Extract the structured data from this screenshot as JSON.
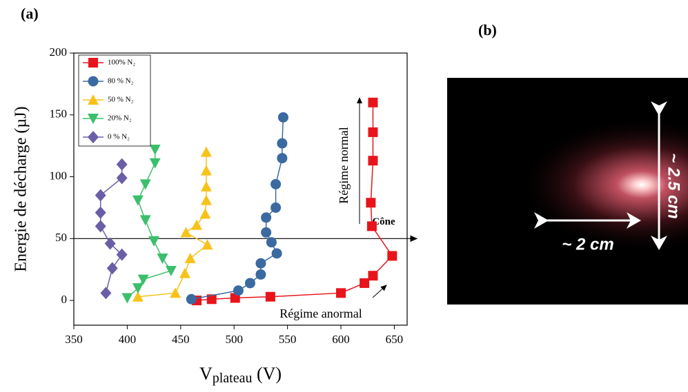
{
  "panel_labels": [
    "(a)",
    "(b)"
  ],
  "chart_data": {
    "type": "line",
    "ylabel": "Energie de décharge (µJ)",
    "xlabel": {
      "main": "V",
      "sub": "plateau",
      "unit": "(V)"
    },
    "xlim": [
      350,
      662
    ],
    "xticks": [
      350,
      400,
      450,
      500,
      550,
      600,
      650
    ],
    "ylim": [
      -20,
      200
    ],
    "yticks": [
      0,
      50,
      100,
      150,
      200
    ],
    "legend": "top-left",
    "reference_line": {
      "y": 50,
      "label": "Cône"
    },
    "annotations": [
      "Régime normal",
      "Régime anormal"
    ],
    "series": [
      {
        "name": "100% N₂",
        "color": "#e8141b",
        "marker": "square",
        "x": [
          465,
          479,
          501,
          534,
          600,
          622,
          630,
          648,
          629,
          628,
          630,
          630,
          630
        ],
        "values": [
          0,
          1,
          2,
          3,
          6,
          14,
          20,
          36,
          60,
          79,
          113,
          136,
          160
        ]
      },
      {
        "name": "80 % N₂",
        "color": "#3a6aa0",
        "marker": "circle",
        "x": [
          460,
          504,
          515,
          525,
          525,
          540,
          535,
          530,
          530,
          539,
          539,
          545,
          545,
          546
        ],
        "values": [
          1,
          8,
          14,
          21,
          30,
          38,
          47,
          55,
          67,
          75,
          94,
          115,
          127,
          148
        ]
      },
      {
        "name": "50 % N₂",
        "color": "#f7c21a",
        "marker": "triangle-up",
        "x": [
          410,
          445,
          454,
          459,
          475,
          455,
          465,
          473,
          474,
          474,
          474,
          474
        ],
        "values": [
          3,
          6,
          22,
          34,
          45,
          55,
          61,
          70,
          81,
          92,
          105,
          120
        ]
      },
      {
        "name": "20% N₂",
        "color": "#3bbf6b",
        "marker": "triangle-down",
        "x": [
          400,
          410,
          415,
          441,
          433,
          425,
          417,
          410,
          417,
          426,
          426
        ],
        "values": [
          2,
          10,
          17,
          24,
          34,
          48,
          65,
          81,
          94,
          111,
          122
        ]
      },
      {
        "name": "0 % N₂",
        "color": "#6a5fa6",
        "marker": "diamond",
        "x": [
          380,
          386,
          395,
          384,
          375,
          375,
          375,
          395,
          395
        ],
        "values": [
          6,
          26,
          37,
          46,
          60,
          71,
          85,
          99,
          110
        ]
      }
    ]
  },
  "photo": {
    "scale_h": "~ 2 cm",
    "scale_v": "~ 2.5 cm"
  }
}
